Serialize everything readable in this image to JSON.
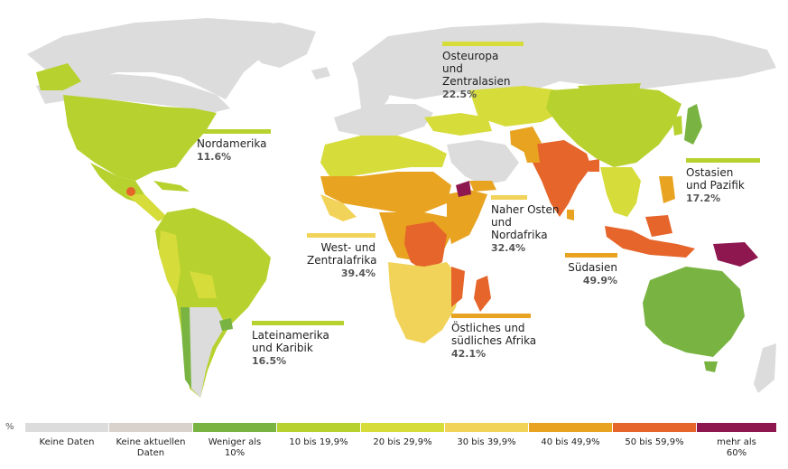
{
  "colors": {
    "no_data": "#dcdcdc",
    "no_current_data": "#d9d2cc",
    "lt10": "#79b442",
    "c10_19": "#b7d12f",
    "c20_29": "#d6dc3a",
    "c30_39": "#f2d35a",
    "c40_49": "#e8a321",
    "c50_59": "#e5652a",
    "gt60": "#8e1750",
    "water": "#ffffff"
  },
  "regions": [
    {
      "key": "nordamerika",
      "name": "Nordamerika",
      "value": "11.6%",
      "color": "#b7d12f"
    },
    {
      "key": "osteuropa",
      "name": "Osteuropa\nund Zentralasien",
      "value": "22.5%",
      "color": "#d6dc3a"
    },
    {
      "key": "ostasien",
      "name": "Ostasien\nund Pazifik",
      "value": "17.2%",
      "color": "#b7d12f"
    },
    {
      "key": "naher_osten",
      "name": "Naher Osten\nund\nNordafrika",
      "value": "32.4%",
      "color": "#f2d35a"
    },
    {
      "key": "westafrika",
      "name": "West- und\nZentralafrika",
      "value": "39.4%",
      "color": "#f2d35a"
    },
    {
      "key": "suedasien",
      "name": "Südasien",
      "value": "49.9%",
      "color": "#e8a321"
    },
    {
      "key": "lateinamerika",
      "name": "Lateinamerika\nund Karibik",
      "value": "16.5%",
      "color": "#b7d12f"
    },
    {
      "key": "ostafrika",
      "name": "Östliches und\nsüdliches Afrika",
      "value": "42.1%",
      "color": "#e8a321"
    }
  ],
  "legend": {
    "unit": "%",
    "items": [
      {
        "label": "Keine Daten",
        "color": "#dcdcdc"
      },
      {
        "label": "Keine aktuellen\nDaten",
        "color": "#d9d2cc"
      },
      {
        "label": "Weniger als\n10%",
        "color": "#79b442"
      },
      {
        "label": "10 bis 19,9%",
        "color": "#b7d12f"
      },
      {
        "label": "20 bis 29,9%",
        "color": "#d6dc3a"
      },
      {
        "label": "30 bis 39,9%",
        "color": "#f2d35a"
      },
      {
        "label": "40 bis 49,9%",
        "color": "#e8a321"
      },
      {
        "label": "50 bis 59,9%",
        "color": "#e5652a"
      },
      {
        "label": "mehr als\n60%",
        "color": "#8e1750"
      }
    ]
  }
}
